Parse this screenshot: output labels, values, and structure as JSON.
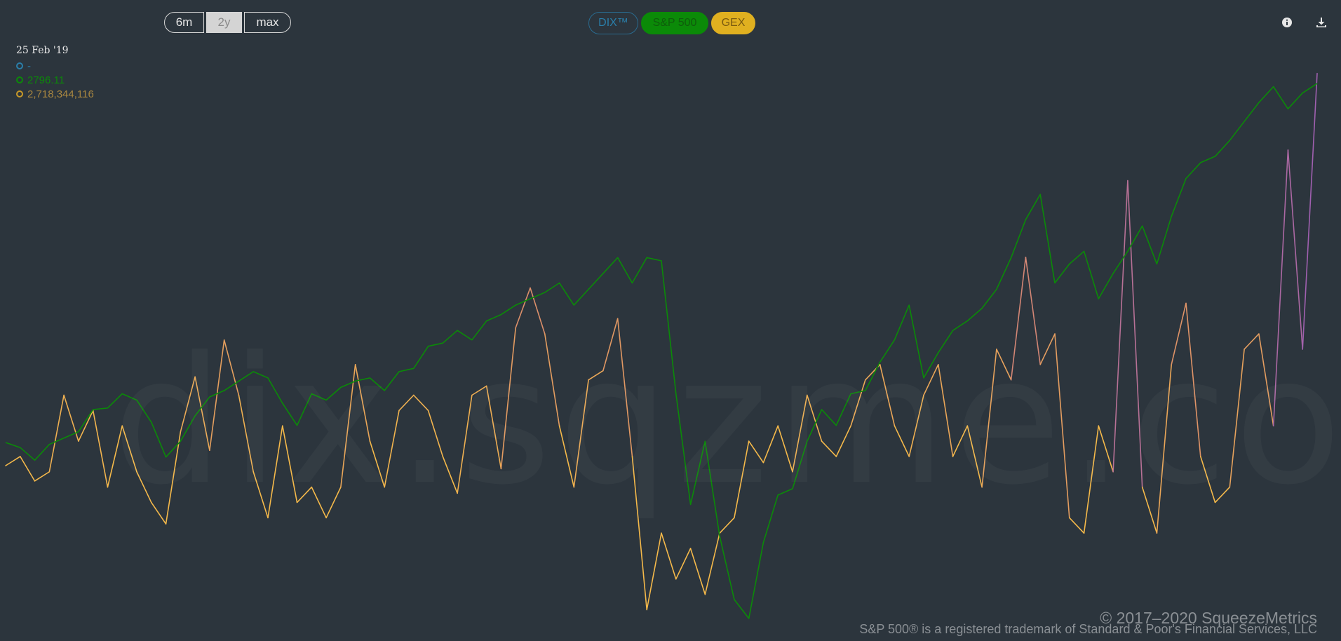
{
  "range_buttons": {
    "b6m": "6m",
    "b2y": "2y",
    "bmax": "max",
    "selected": "2y"
  },
  "series_buttons": {
    "dix": "DIX™",
    "spx": "S&P 500",
    "gex": "GEX"
  },
  "icons": {
    "info": "info-icon",
    "download": "download-icon"
  },
  "readout": {
    "date": "25 Feb '19",
    "dix_value": "-",
    "spx_value": "2796.11",
    "gex_value": "2,718,344,116"
  },
  "watermark": "dix.sqzme.co",
  "footer": {
    "copyright": "© 2017–2020 SqueezeMetrics",
    "trademark": "S&P 500® is a registered trademark of Standard & Poor's Financial Services, LLC"
  },
  "colors": {
    "background": "#2c353d",
    "dix": "#2a7faa",
    "spx": "#0b8a08",
    "gex_low": "#f5b94a",
    "gex_mid": "#d98a6e",
    "gex_high": "#a060b0"
  },
  "chart_data": {
    "type": "line",
    "x_range": [
      "2019-02-25",
      "2021-02-19"
    ],
    "series": [
      {
        "name": "S&P 500",
        "values": [
          2796,
          2780,
          2740,
          2790,
          2810,
          2830,
          2900,
          2905,
          2950,
          2930,
          2860,
          2750,
          2800,
          2880,
          2940,
          2960,
          2990,
          3020,
          3000,
          2920,
          2850,
          2950,
          2930,
          2970,
          2990,
          3000,
          2960,
          3020,
          3030,
          3100,
          3110,
          3150,
          3120,
          3180,
          3200,
          3230,
          3250,
          3270,
          3300,
          3230,
          3280,
          3330,
          3380,
          3300,
          3380,
          3370,
          2950,
          2600,
          2800,
          2500,
          2300,
          2240,
          2480,
          2630,
          2650,
          2800,
          2900,
          2850,
          2950,
          2960,
          3050,
          3120,
          3230,
          3000,
          3080,
          3150,
          3180,
          3220,
          3280,
          3380,
          3500,
          3580,
          3300,
          3360,
          3400,
          3250,
          3330,
          3400,
          3480,
          3360,
          3510,
          3630,
          3680,
          3700,
          3750,
          3810,
          3870,
          3920,
          3850,
          3900,
          3930
        ]
      },
      {
        "name": "GEX",
        "values": [
          2.7,
          3.0,
          2.2,
          2.5,
          5.0,
          3.5,
          4.5,
          2.0,
          4.0,
          2.5,
          1.5,
          0.8,
          3.8,
          5.6,
          3.2,
          6.8,
          5.0,
          2.5,
          1.0,
          4.0,
          1.5,
          2.0,
          1.0,
          2.0,
          6.0,
          3.5,
          2.0,
          4.5,
          5.0,
          4.5,
          3.0,
          1.8,
          5.0,
          5.3,
          2.6,
          7.2,
          8.5,
          7.0,
          4.0,
          2.0,
          5.5,
          5.8,
          7.5,
          3.0,
          -2.0,
          0.5,
          -1.0,
          0.0,
          -1.5,
          0.5,
          1.0,
          3.5,
          2.8,
          4.0,
          2.5,
          5.0,
          3.5,
          3.0,
          4.0,
          5.5,
          6.0,
          4.0,
          3.0,
          5.0,
          6.0,
          3.0,
          4.0,
          2.0,
          6.5,
          5.5,
          9.5,
          6.0,
          7.0,
          1.0,
          0.5,
          4.0,
          2.5,
          12.0,
          2.0,
          0.5,
          6.0,
          8.0,
          3.0,
          1.5,
          2.0,
          6.5,
          7.0,
          4.0,
          13.0,
          6.5,
          15.5
        ]
      }
    ]
  }
}
